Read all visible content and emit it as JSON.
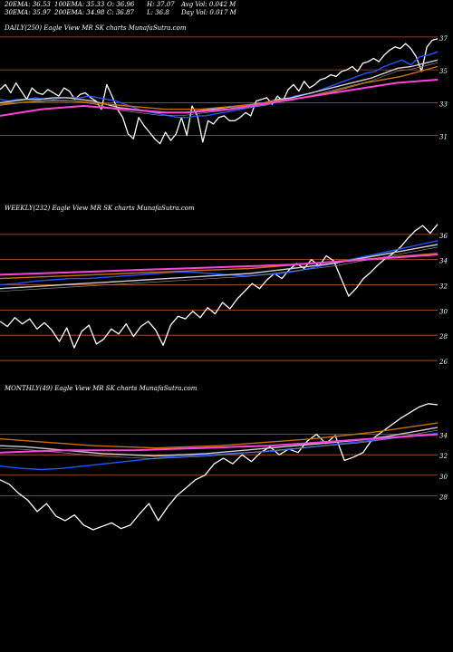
{
  "header": {
    "col1": [
      "20EMA: 36.53",
      "30EMA: 35.97"
    ],
    "col2": [
      "100EMA: 35.33",
      "200EMA: 34.98"
    ],
    "col3": [
      "O: 36.96",
      "C: 36.87"
    ],
    "col4": [
      "H: 37.07",
      "L: 36.8"
    ],
    "col5": [
      "Avg Vol: 0.042  M",
      "Day Vol: 0.017 M"
    ]
  },
  "chart_data": [
    {
      "type": "line",
      "title": "DAILY(250) Eagle  View  MR                SK charts MunafaSutra.com",
      "y_ticks": [
        "37",
        "35",
        "33",
        "31"
      ],
      "ylim": [
        30,
        38
      ],
      "grid_levels": [
        37.4,
        35.4,
        33.4,
        31.4
      ],
      "series": [
        {
          "color": "#ffffff",
          "values": [
            34.2,
            34.5,
            34.0,
            34.6,
            34.1,
            33.6,
            34.3,
            34.0,
            33.9,
            34.2,
            34.0,
            33.8,
            34.3,
            34.1,
            33.6,
            33.9,
            34.0,
            33.7,
            33.5,
            33.0,
            34.5,
            33.8,
            33.0,
            32.5,
            31.5,
            31.2,
            32.5,
            32.0,
            31.6,
            31.2,
            30.9,
            31.6,
            31.1,
            31.5,
            32.5,
            31.4,
            33.2,
            32.6,
            31.0,
            32.3,
            32.1,
            32.5,
            32.6,
            32.3,
            32.3,
            32.5,
            32.8,
            32.6,
            33.5,
            33.6,
            33.7,
            33.3,
            33.8,
            33.5,
            34.2,
            34.5,
            34.1,
            34.7,
            34.3,
            34.5,
            34.8,
            34.9,
            35.1,
            35.0,
            35.3,
            35.4,
            35.6,
            35.3,
            35.8,
            35.9,
            36.1,
            35.9,
            36.3,
            36.6,
            36.8,
            36.7,
            37.0,
            36.7,
            36.2,
            35.3,
            36.8,
            37.2,
            37.3
          ]
        },
        {
          "color": "#2255ff",
          "values": [
            33.6,
            33.5,
            33.6,
            33.6,
            33.7,
            33.6,
            33.6,
            33.7,
            33.7,
            33.7,
            33.8,
            33.7,
            33.6,
            33.5,
            33.3,
            33.1,
            32.9,
            32.8,
            32.7,
            32.6,
            32.5,
            32.5,
            32.6,
            32.6,
            32.7,
            32.8,
            32.9,
            33.0,
            33.1,
            33.2,
            33.3,
            33.5,
            33.6,
            33.8,
            33.9,
            34.0,
            34.2,
            34.4,
            34.6,
            34.8,
            35.0,
            35.2,
            35.3,
            35.6,
            35.8,
            36.0,
            35.7,
            36.2,
            36.3,
            36.5
          ]
        },
        {
          "color": "#cccccc",
          "values": [
            33.4,
            33.5,
            33.6,
            33.6,
            33.7,
            33.7,
            33.6,
            33.5,
            33.3,
            33.1,
            33.0,
            32.9,
            32.8,
            32.8,
            32.8,
            32.9,
            33.0,
            33.1,
            33.2,
            33.3,
            33.4,
            33.6,
            33.7,
            33.9,
            34.1,
            34.3,
            34.5,
            34.7,
            34.9,
            35.2,
            35.5,
            35.6,
            35.8,
            36.0
          ]
        },
        {
          "color": "#c87000",
          "values": [
            33.3,
            33.4,
            33.5,
            33.5,
            33.5,
            33.4,
            33.3,
            33.2,
            33.1,
            33.0,
            33.0,
            33.0,
            33.1,
            33.2,
            33.3,
            33.5,
            33.6,
            33.8,
            34.0,
            34.3,
            34.6,
            34.8,
            35.0,
            35.3,
            35.6
          ]
        },
        {
          "color": "#ff44dd",
          "values": [
            32.6,
            32.8,
            33.0,
            33.1,
            33.2,
            33.1,
            33.0,
            32.9,
            32.8,
            32.8,
            32.9,
            33.0,
            33.2,
            33.4,
            33.6,
            33.8,
            34.0,
            34.2,
            34.4,
            34.6,
            34.7,
            34.8
          ]
        }
      ]
    },
    {
      "type": "line",
      "title": "WEEKLY(232) Eagle  View  MR                SK charts MunafaSutra.com",
      "y_ticks": [
        "36",
        "34",
        "32",
        "30",
        "28",
        "26"
      ],
      "ylim": [
        25,
        37
      ],
      "grid_levels": [
        35.5,
        33.5,
        31.5,
        29.5,
        27.5,
        25.5
      ],
      "series": [
        {
          "color": "#ffffff",
          "values": [
            28.6,
            28.2,
            28.9,
            28.4,
            28.8,
            28.0,
            28.5,
            27.9,
            27.0,
            28.1,
            26.5,
            27.8,
            28.3,
            26.8,
            27.2,
            28.0,
            27.6,
            28.4,
            27.4,
            28.2,
            28.6,
            27.9,
            26.7,
            28.3,
            29.0,
            28.8,
            29.4,
            28.9,
            29.7,
            29.2,
            30.1,
            29.6,
            30.4,
            31.0,
            31.6,
            31.2,
            31.9,
            32.4,
            32.0,
            32.7,
            33.2,
            32.8,
            33.5,
            33.0,
            33.8,
            33.4,
            32.0,
            30.6,
            31.2,
            32.0,
            32.5,
            33.1,
            33.6,
            34.0,
            34.5,
            35.2,
            35.8,
            36.2,
            35.6,
            36.3
          ]
        },
        {
          "color": "#2255ff",
          "values": [
            31.5,
            31.6,
            31.8,
            31.9,
            32.0,
            32.0,
            32.1,
            32.2,
            32.3,
            32.4,
            32.5,
            32.5,
            32.4,
            32.3,
            32.2,
            32.3,
            32.4,
            32.6,
            32.9,
            33.2,
            33.5,
            33.8,
            34.1,
            34.4,
            34.7,
            35.0
          ]
        },
        {
          "color": "#cccccc",
          "values": [
            31.2,
            31.3,
            31.4,
            31.5,
            31.6,
            31.7,
            31.8,
            31.9,
            32.0,
            32.1,
            32.2,
            32.3,
            32.4,
            32.6,
            32.8,
            33.0,
            33.2,
            33.5,
            33.8,
            34.1,
            34.4,
            34.7
          ]
        },
        {
          "color": "#c87000",
          "values": [
            32.0,
            32.1,
            32.2,
            32.3,
            32.4,
            32.5,
            32.6,
            32.7,
            32.8,
            33.0,
            33.2,
            33.4,
            33.6,
            33.8,
            34.0
          ]
        },
        {
          "color": "#ff44dd",
          "values": [
            32.3,
            32.4,
            32.5,
            32.6,
            32.7,
            32.8,
            32.9,
            33.0,
            33.1,
            33.3,
            33.5,
            33.7,
            33.9
          ]
        }
      ]
    },
    {
      "type": "line",
      "title": "MONTHLY(49) Eagle  View  MR                SK charts MunafaSutra.com",
      "y_ticks": [
        "34",
        "32",
        "30",
        "28"
      ],
      "ylim": [
        24,
        37
      ],
      "grid_levels": [
        33.6,
        31.8,
        30.0,
        28.2
      ],
      "series": [
        {
          "color": "#ffffff",
          "values": [
            29.6,
            29.2,
            28.4,
            27.8,
            26.8,
            27.5,
            26.4,
            26.0,
            26.5,
            25.6,
            25.2,
            25.5,
            25.8,
            25.3,
            25.6,
            26.6,
            27.5,
            26.0,
            27.2,
            28.2,
            28.9,
            29.6,
            30.0,
            31.0,
            31.5,
            31.0,
            31.8,
            31.2,
            32.0,
            32.5,
            31.8,
            32.3,
            32.0,
            33.0,
            33.6,
            32.8,
            33.5,
            31.3,
            31.6,
            32.0,
            33.2,
            33.8,
            34.4,
            35.0,
            35.5,
            36.0,
            36.3,
            36.2
          ]
        },
        {
          "color": "#2255ff",
          "values": [
            30.8,
            30.6,
            30.5,
            30.6,
            30.8,
            31.0,
            31.2,
            31.4,
            31.6,
            31.7,
            31.8,
            31.9,
            32.0,
            32.1,
            32.3,
            32.5,
            32.7,
            32.9,
            33.1,
            33.3,
            33.5,
            33.7
          ]
        },
        {
          "color": "#cccccc",
          "values": [
            32.6,
            32.5,
            32.3,
            32.1,
            31.9,
            31.8,
            31.7,
            31.8,
            31.9,
            32.1,
            32.3,
            32.5,
            32.7,
            32.9,
            33.1,
            33.4,
            33.8,
            34.2
          ]
        },
        {
          "color": "#c87000",
          "values": [
            33.2,
            33.0,
            32.8,
            32.6,
            32.5,
            32.4,
            32.5,
            32.6,
            32.8,
            33.0,
            33.2,
            33.5,
            33.8,
            34.2,
            34.6
          ]
        },
        {
          "color": "#ff44dd",
          "values": [
            32.0,
            32.1,
            32.2,
            32.2,
            32.2,
            32.3,
            32.4,
            32.5,
            32.6,
            32.8,
            33.0,
            33.2,
            33.4,
            33.6
          ]
        }
      ]
    }
  ]
}
